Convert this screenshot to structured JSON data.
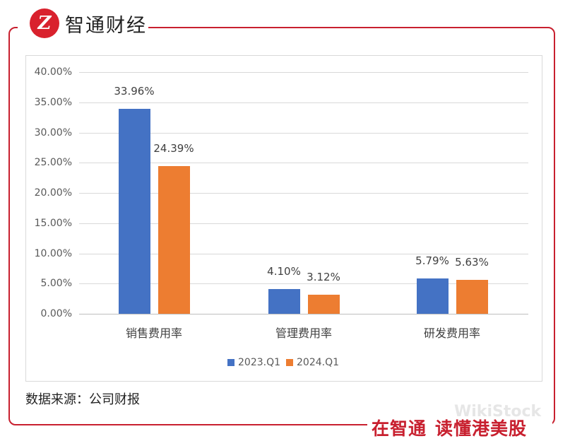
{
  "brand": {
    "logo_glyph": "Z",
    "name": "智通财经",
    "slogan_part1": "在智通",
    "slogan_part2": "读懂港美股",
    "watermark": "WikiStock",
    "accent_color": "#c8202f"
  },
  "source_note": "数据来源：公司财报",
  "chart_data": {
    "type": "bar",
    "title": "",
    "xlabel": "",
    "ylabel": "",
    "categories": [
      "销售费用率",
      "管理费用率",
      "研发费用率"
    ],
    "series": [
      {
        "name": "2023.Q1",
        "color": "#4472c4",
        "values": [
          33.96,
          4.1,
          5.79
        ],
        "labels": [
          "33.96%",
          "4.10%",
          "5.79%"
        ]
      },
      {
        "name": "2024.Q1",
        "color": "#ed7d31",
        "values": [
          24.39,
          3.12,
          5.63
        ],
        "labels": [
          "24.39%",
          "3.12%",
          "5.63%"
        ]
      }
    ],
    "ylim": [
      0,
      40
    ],
    "yticks": [
      "0.00%",
      "5.00%",
      "10.00%",
      "15.00%",
      "20.00%",
      "25.00%",
      "30.00%",
      "35.00%",
      "40.00%"
    ],
    "grid": true,
    "legend_position": "bottom"
  }
}
